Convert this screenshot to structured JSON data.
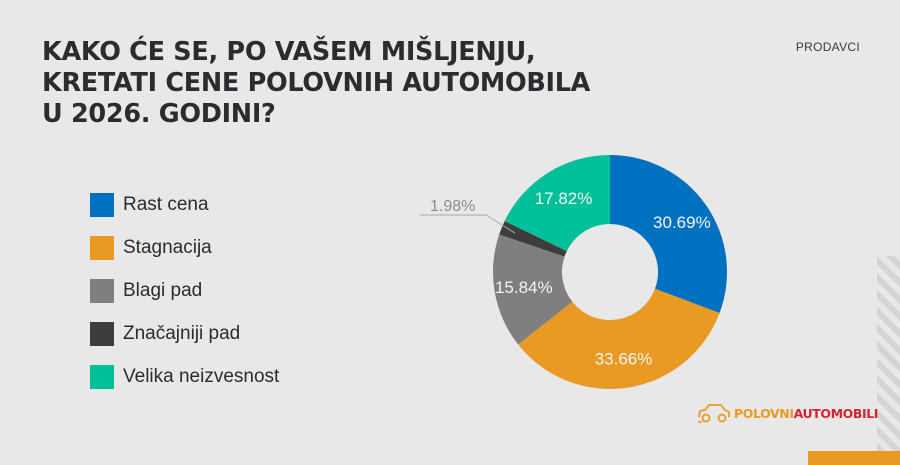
{
  "header": {
    "title_lines": [
      "KAKO ĆE SE, PO VAŠEM MIŠLJENJU,",
      "KRETATI CENE POLOVNIH AUTOMOBILA",
      "U 2026. GODINI?"
    ],
    "segment_tag": "PRODAVCI"
  },
  "legend": {
    "items": [
      {
        "label": "Rast cena",
        "color": "#0070c0"
      },
      {
        "label": "Stagnacija",
        "color": "#e99a23"
      },
      {
        "label": "Blagi pad",
        "color": "#7f7f7f"
      },
      {
        "label": "Značajniji pad",
        "color": "#3d3d3d"
      },
      {
        "label": "Velika neizvesnost",
        "color": "#00c09a"
      }
    ]
  },
  "logo": {
    "part1": "POLOVNI",
    "part2": "AUTOMOBILI",
    "icon": "car-outline-icon"
  },
  "colors": {
    "background": "#e8e8e8",
    "accent_orange": "#e99a23",
    "brand_red": "#d1242f"
  },
  "chart_data": {
    "type": "pie",
    "variant": "donut",
    "title": "KAKO ĆE SE, PO VAŠEM MIŠLJENJU, KRETATI CENE POLOVNIH AUTOMOBILA U 2026. GODINI?",
    "subtitle": "PRODAVCI",
    "categories": [
      "Rast cena",
      "Stagnacija",
      "Blagi pad",
      "Značajniji pad",
      "Velika neizvesnost"
    ],
    "values": [
      30.69,
      33.66,
      15.84,
      1.98,
      17.82
    ],
    "labels": [
      "30.69%",
      "33.66%",
      "15.84%",
      "1.98%",
      "17.82%"
    ],
    "colors": [
      "#0070c0",
      "#e99a23",
      "#7f7f7f",
      "#3d3d3d",
      "#00c09a"
    ],
    "unit": "%",
    "start_angle": "12 o'clock",
    "direction": "clockwise",
    "legend_position": "left",
    "external_labels": [
      "1.98%"
    ]
  }
}
